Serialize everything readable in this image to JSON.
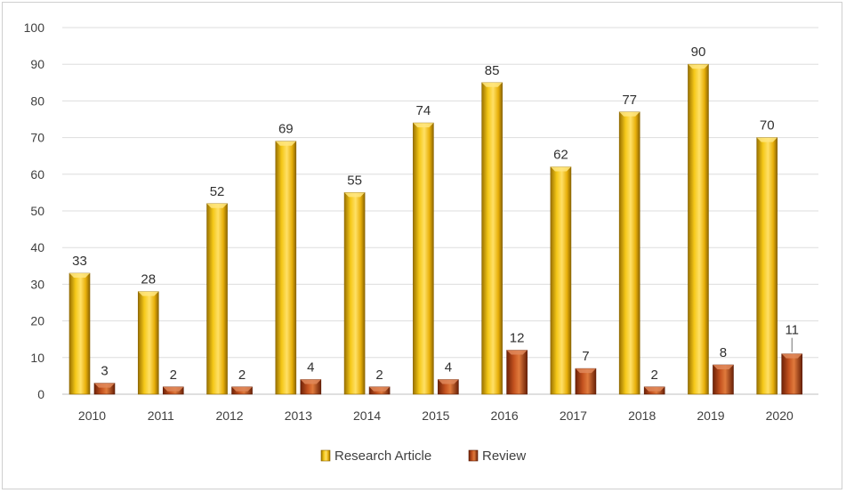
{
  "chart_data": {
    "type": "bar",
    "categories": [
      "2010",
      "2011",
      "2012",
      "2013",
      "2014",
      "2015",
      "2016",
      "2017",
      "2018",
      "2019",
      "2020"
    ],
    "series": [
      {
        "name": "Research Article",
        "values": [
          33,
          28,
          52,
          69,
          55,
          74,
          85,
          62,
          77,
          90,
          70
        ],
        "color": "#e8b20c"
      },
      {
        "name": "Review",
        "values": [
          3,
          2,
          2,
          4,
          2,
          4,
          12,
          7,
          2,
          8,
          11
        ],
        "color": "#b5441a"
      }
    ],
    "title": "",
    "xlabel": "",
    "ylabel": "",
    "ylim": [
      0,
      100
    ],
    "yticks": [
      "0",
      "10",
      "20",
      "30",
      "40",
      "50",
      "60",
      "70",
      "80",
      "90",
      "100"
    ],
    "grid": true,
    "legend": "bottom",
    "bar_style": "3d"
  }
}
